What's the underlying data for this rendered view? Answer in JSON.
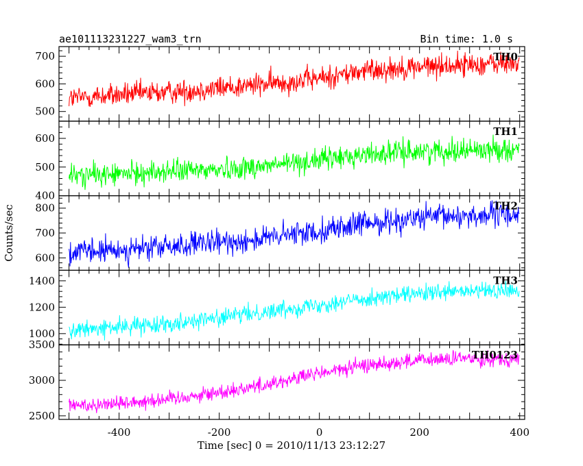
{
  "chart_data": {
    "type": "line",
    "title": "ae101113231227_wam3_trn",
    "bin_time_label": "Bin time: 1.0 s",
    "xlabel": "Time [sec] 0 = 2010/11/13 23:12:27",
    "ylabel": "Counts/sec",
    "xlim": [
      -520,
      410
    ],
    "xticks": [
      -400,
      -200,
      0,
      200,
      400
    ],
    "x_start": -500,
    "x_end": 399,
    "grid": false,
    "panels": [
      {
        "name": "TH0",
        "color": "#ff0000",
        "ylim": [
          465,
          735
        ],
        "yticks": [
          500,
          600,
          700
        ],
        "x": [
          -500,
          -400,
          -300,
          -200,
          -100,
          0,
          100,
          200,
          300,
          399
        ],
        "y": [
          548,
          560,
          570,
          585,
          600,
          620,
          650,
          662,
          670,
          675
        ],
        "noise": 30
      },
      {
        "name": "TH1",
        "color": "#00ff00",
        "ylim": [
          400,
          660
        ],
        "yticks": [
          400,
          500,
          600
        ],
        "x": [
          -500,
          -400,
          -300,
          -200,
          -100,
          0,
          100,
          200,
          300,
          399
        ],
        "y": [
          470,
          475,
          485,
          492,
          505,
          525,
          545,
          555,
          560,
          562
        ],
        "noise": 28
      },
      {
        "name": "TH2",
        "color": "#0000ff",
        "ylim": [
          550,
          850
        ],
        "yticks": [
          600,
          700,
          800
        ],
        "x": [
          -500,
          -400,
          -300,
          -200,
          -100,
          0,
          100,
          200,
          300,
          399
        ],
        "y": [
          620,
          630,
          645,
          660,
          680,
          710,
          740,
          760,
          770,
          775
        ],
        "noise": 35
      },
      {
        "name": "TH3",
        "color": "#00ffff",
        "ylim": [
          915,
          1480
        ],
        "yticks": [
          1000,
          1200,
          1400
        ],
        "x": [
          -500,
          -400,
          -300,
          -200,
          -100,
          0,
          100,
          200,
          300,
          399
        ],
        "y": [
          1020,
          1050,
          1080,
          1120,
          1170,
          1220,
          1270,
          1300,
          1320,
          1325
        ],
        "noise": 45
      },
      {
        "name": "TH0123",
        "color": "#ff00ff",
        "ylim": [
          2450,
          3500
        ],
        "yticks": [
          2500,
          3000,
          3500
        ],
        "x": [
          -500,
          -400,
          -300,
          -200,
          -100,
          0,
          100,
          200,
          300,
          399
        ],
        "y": [
          2640,
          2680,
          2740,
          2830,
          2950,
          3100,
          3220,
          3280,
          3310,
          3300
        ],
        "noise": 75
      }
    ]
  }
}
